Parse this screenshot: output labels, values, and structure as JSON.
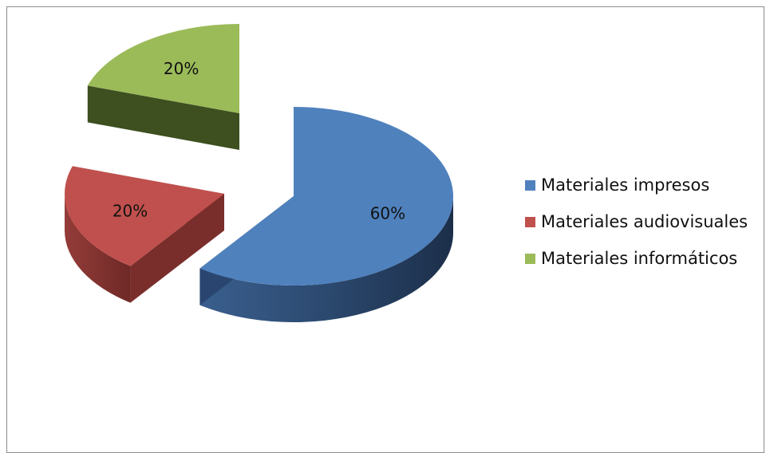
{
  "chart_data": {
    "type": "pie",
    "categories": [
      "Materiales impresos",
      "Materiales audiovisuales",
      "Materiales informáticos"
    ],
    "values": [
      60,
      20,
      20
    ],
    "data_labels": [
      "60%",
      "20%",
      "20%"
    ],
    "colors": [
      "#4f81bd",
      "#c0504d",
      "#9bbb59"
    ],
    "legend_position": "right",
    "style": "3d exploded pie"
  }
}
